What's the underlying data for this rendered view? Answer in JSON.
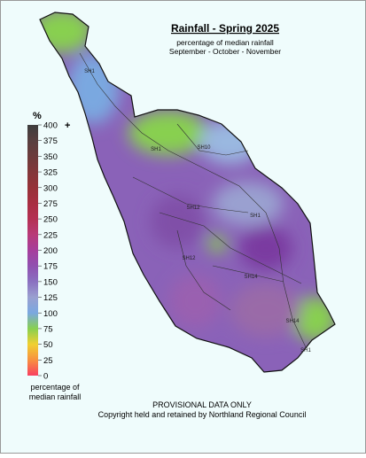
{
  "header": {
    "title": "Rainfall - Spring 2025",
    "subtitle": "percentage of median rainfall",
    "period": "September - October - November"
  },
  "legend": {
    "unit": "%",
    "overflow": "+",
    "caption": [
      "percentage of",
      "median rainfall"
    ],
    "ticks": [
      {
        "value": 400,
        "color": "#3d3d3d"
      },
      {
        "value": 375,
        "color": "#583f3f"
      },
      {
        "value": 350,
        "color": "#6c3b3b"
      },
      {
        "value": 325,
        "color": "#823739"
      },
      {
        "value": 300,
        "color": "#963238"
      },
      {
        "value": 275,
        "color": "#a82f42"
      },
      {
        "value": 250,
        "color": "#b43052"
      },
      {
        "value": 225,
        "color": "#b83a78"
      },
      {
        "value": 200,
        "color": "#a63e9c"
      },
      {
        "value": 175,
        "color": "#9050b0"
      },
      {
        "value": 150,
        "color": "#8a70c0"
      },
      {
        "value": 125,
        "color": "#9aa0d0"
      },
      {
        "value": 100,
        "color": "#7aa8e0"
      },
      {
        "value": 75,
        "color": "#88d050"
      },
      {
        "value": 50,
        "color": "#f0d030"
      },
      {
        "value": 25,
        "color": "#f89040"
      },
      {
        "value": 0,
        "color": "#f84060"
      }
    ]
  },
  "roads": [
    "SH1",
    "SH1",
    "SH10",
    "SH12",
    "SH1",
    "SH12",
    "SH14",
    "SH14",
    "SH1"
  ],
  "footer": [
    "PROVISIONAL DATA ONLY",
    "Copyright held and retained by Northland Regional Council"
  ]
}
